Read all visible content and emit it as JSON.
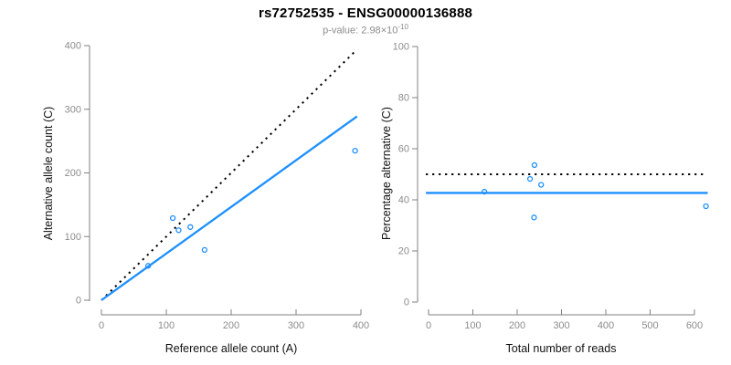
{
  "header": {
    "title": "rs72752535 - ENSG00000136888",
    "subtitle": {
      "label": "p-value:",
      "mantissa": "2.98",
      "times": "×",
      "base": "10",
      "exponent": "-10"
    }
  },
  "colors": {
    "accent_blue": "#1e90ff",
    "line_black": "#000000",
    "axis_gray": "#808080",
    "tick_text": "#8c8c8c",
    "subtitle_gray": "#8c8c8c",
    "background": "#ffffff"
  },
  "chart_data": [
    {
      "type": "scatter",
      "name": "allele-counts-panel",
      "xlabel": "Reference allele count (A)",
      "ylabel": "Alternative allele count (C)",
      "xlim": [
        0,
        400
      ],
      "ylim": [
        0,
        400
      ],
      "xticks": [
        0,
        100,
        200,
        300,
        400
      ],
      "yticks": [
        0,
        100,
        200,
        300,
        400
      ],
      "grid": false,
      "points": [
        {
          "x": 72,
          "y": 54
        },
        {
          "x": 110,
          "y": 129
        },
        {
          "x": 119,
          "y": 110
        },
        {
          "x": 137,
          "y": 115
        },
        {
          "x": 159,
          "y": 79
        },
        {
          "x": 391,
          "y": 235
        }
      ],
      "lines": [
        {
          "name": "identity-line",
          "style": "dotted",
          "color_key": "line_black",
          "slope": 1.0,
          "intercept": 0,
          "x_range": [
            0,
            392
          ],
          "width": 2
        },
        {
          "name": "fit-line",
          "style": "solid",
          "color_key": "accent_blue",
          "slope": 0.733,
          "intercept": 0,
          "x_range": [
            0,
            394
          ],
          "width": 2.3
        }
      ]
    },
    {
      "type": "scatter",
      "name": "percentage-panel",
      "xlabel": "Total number of reads",
      "ylabel": "Percentage alternative (C)",
      "xlim": [
        0,
        650
      ],
      "ylim": [
        0,
        100
      ],
      "xticks": [
        0,
        100,
        200,
        300,
        400,
        500,
        600
      ],
      "yticks": [
        0,
        20,
        40,
        60,
        80,
        100
      ],
      "grid": false,
      "points": [
        {
          "x": 126,
          "y": 43.2
        },
        {
          "x": 229,
          "y": 48.2
        },
        {
          "x": 239,
          "y": 53.6
        },
        {
          "x": 254,
          "y": 45.9
        },
        {
          "x": 238,
          "y": 33.1
        },
        {
          "x": 626,
          "y": 37.5
        }
      ],
      "lines": [
        {
          "name": "fifty-percent-line",
          "style": "dotted",
          "color_key": "line_black",
          "slope": 0,
          "intercept": 50,
          "x_range": [
            -6,
            625
          ],
          "width": 2
        },
        {
          "name": "fit-line",
          "style": "solid",
          "color_key": "accent_blue",
          "slope": 0,
          "intercept": 42.7,
          "x_range": [
            -6,
            630
          ],
          "width": 2.3
        }
      ]
    }
  ]
}
